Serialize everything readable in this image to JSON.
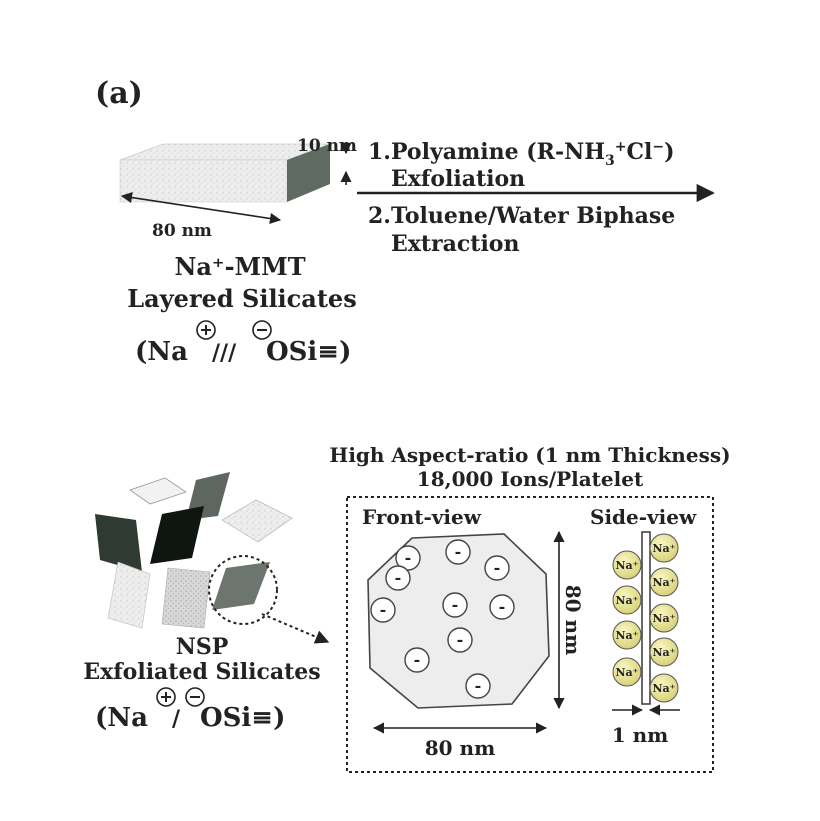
{
  "panel_label": "(a)",
  "mmt": {
    "thickness_label": "10 nm",
    "width_label": "80 nm",
    "name": "Na⁺-MMT",
    "subtitle": "Layered Silicates",
    "formula_open": "(Na",
    "formula_sep": "///",
    "formula_end": "OSi≡)"
  },
  "process": {
    "step1_prefix": "1.Polyamine (R-NH",
    "step1_sub": "3",
    "step1_mid": "Cl",
    "step1_end": ")",
    "step1_line2": "Exfoliation",
    "step2_line1": "2.Toluene/Water Biphase",
    "step2_line2": "Extraction"
  },
  "nsp": {
    "name": "NSP",
    "subtitle": "Exfoliated Silicates",
    "formula_open": "(Na",
    "formula_sep": "/",
    "formula_end": "OSi≡)"
  },
  "detail": {
    "title_line1": "High Aspect-ratio (1 nm Thickness)",
    "title_line2": "18,000 Ions/Platelet",
    "front_label": "Front-view",
    "side_label": "Side-view",
    "front_width_label": "80 nm",
    "front_height_label": "80 nm",
    "side_thickness_label": "1 nm",
    "anion_symbol": "-",
    "cation_symbol": "Na⁺"
  }
}
